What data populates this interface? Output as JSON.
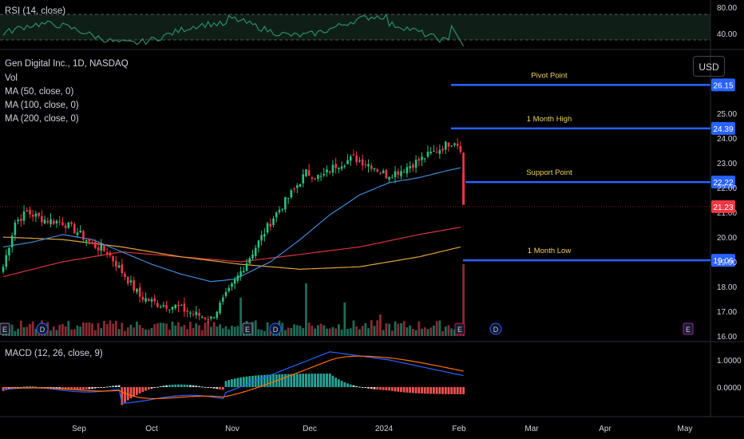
{
  "rsi_panel": {
    "label": "RSI (14, close)",
    "ticks": [
      "80.00",
      "40.00"
    ]
  },
  "main_panel": {
    "title": "Gen Digital Inc., 1D, NASDAQ",
    "indicators": [
      "Vol",
      "MA (50, close, 0)",
      "MA (100, close, 0)",
      "MA (200, close, 0)"
    ],
    "currency": "USD",
    "price_ticks": [
      "25.00",
      "24.00",
      "23.00",
      "22.00",
      "21.00",
      "20.00",
      "19.00",
      "18.00",
      "17.00",
      "16.00"
    ]
  },
  "macd_panel": {
    "label": "MACD (12, 26, close, 9)",
    "ticks": [
      "1.0000",
      "0.0000"
    ]
  },
  "time_axis": [
    "Sep",
    "Oct",
    "Nov",
    "Dec",
    "2024",
    "Feb",
    "Mar",
    "Apr",
    "May"
  ],
  "event_markers": [
    "E",
    "D",
    "E",
    "D",
    "E",
    "D",
    "E"
  ],
  "chart_data": {
    "type": "candlestick",
    "title": "Gen Digital Inc., 1D, NASDAQ",
    "levels": [
      {
        "name": "Pivot Point",
        "value": 26.15,
        "label": "26.15",
        "color": "#2962ff"
      },
      {
        "name": "1 Month High",
        "value": 24.39,
        "label": "24.39",
        "color": "#2962ff"
      },
      {
        "name": "Support Point",
        "value": 22.22,
        "label": "22.22",
        "color": "#2962ff"
      },
      {
        "name": "1 Month Low",
        "value": 19.06,
        "label": "19.06",
        "color": "#2962ff"
      }
    ],
    "last_price": {
      "value": 21.23,
      "label": "21.23",
      "color": "#f23645"
    },
    "price_keypoints": [
      [
        0,
        18.8
      ],
      [
        4,
        20.6
      ],
      [
        8,
        21.0
      ],
      [
        14,
        20.7
      ],
      [
        20,
        20.6
      ],
      [
        25,
        20.2
      ],
      [
        30,
        19.7
      ],
      [
        35,
        19.4
      ],
      [
        40,
        18.6
      ],
      [
        46,
        17.6
      ],
      [
        52,
        17.3
      ],
      [
        58,
        17.2
      ],
      [
        64,
        16.9
      ],
      [
        70,
        16.7
      ],
      [
        76,
        17.8
      ],
      [
        80,
        18.6
      ],
      [
        86,
        19.8
      ],
      [
        91,
        20.8
      ],
      [
        96,
        21.6
      ],
      [
        102,
        22.6
      ],
      [
        107,
        22.4
      ],
      [
        112,
        22.9
      ],
      [
        118,
        23.2
      ],
      [
        124,
        22.9
      ],
      [
        129,
        22.5
      ],
      [
        134,
        22.7
      ],
      [
        140,
        23.1
      ],
      [
        146,
        23.5
      ],
      [
        150,
        23.8
      ],
      [
        152,
        23.9
      ],
      [
        154,
        23.6
      ],
      [
        155,
        21.3
      ]
    ],
    "ma50_keypoints": [
      [
        0,
        19.6
      ],
      [
        10,
        19.8
      ],
      [
        20,
        20.1
      ],
      [
        30,
        19.9
      ],
      [
        40,
        19.4
      ],
      [
        50,
        18.9
      ],
      [
        60,
        18.5
      ],
      [
        70,
        18.2
      ],
      [
        78,
        18.3
      ],
      [
        90,
        19.0
      ],
      [
        100,
        19.9
      ],
      [
        110,
        20.9
      ],
      [
        120,
        21.7
      ],
      [
        130,
        22.2
      ],
      [
        140,
        22.4
      ],
      [
        150,
        22.7
      ],
      [
        154,
        22.8
      ]
    ],
    "ma100_keypoints": [
      [
        0,
        18.4
      ],
      [
        20,
        19.0
      ],
      [
        40,
        19.4
      ],
      [
        60,
        19.2
      ],
      [
        80,
        19.0
      ],
      [
        100,
        19.3
      ],
      [
        120,
        19.6
      ],
      [
        140,
        20.1
      ],
      [
        154,
        20.4
      ]
    ],
    "ma200_keypoints": [
      [
        0,
        20.0
      ],
      [
        20,
        19.9
      ],
      [
        40,
        19.6
      ],
      [
        60,
        19.2
      ],
      [
        80,
        18.9
      ],
      [
        100,
        18.7
      ],
      [
        120,
        18.8
      ],
      [
        140,
        19.2
      ],
      [
        154,
        19.6
      ]
    ],
    "volume_spikes": [
      [
        80,
        1.6
      ],
      [
        102,
        2.2
      ],
      [
        115,
        1.4
      ],
      [
        127,
        0.9
      ],
      [
        155,
        3.0
      ]
    ],
    "y_range": [
      16,
      26.8
    ]
  }
}
